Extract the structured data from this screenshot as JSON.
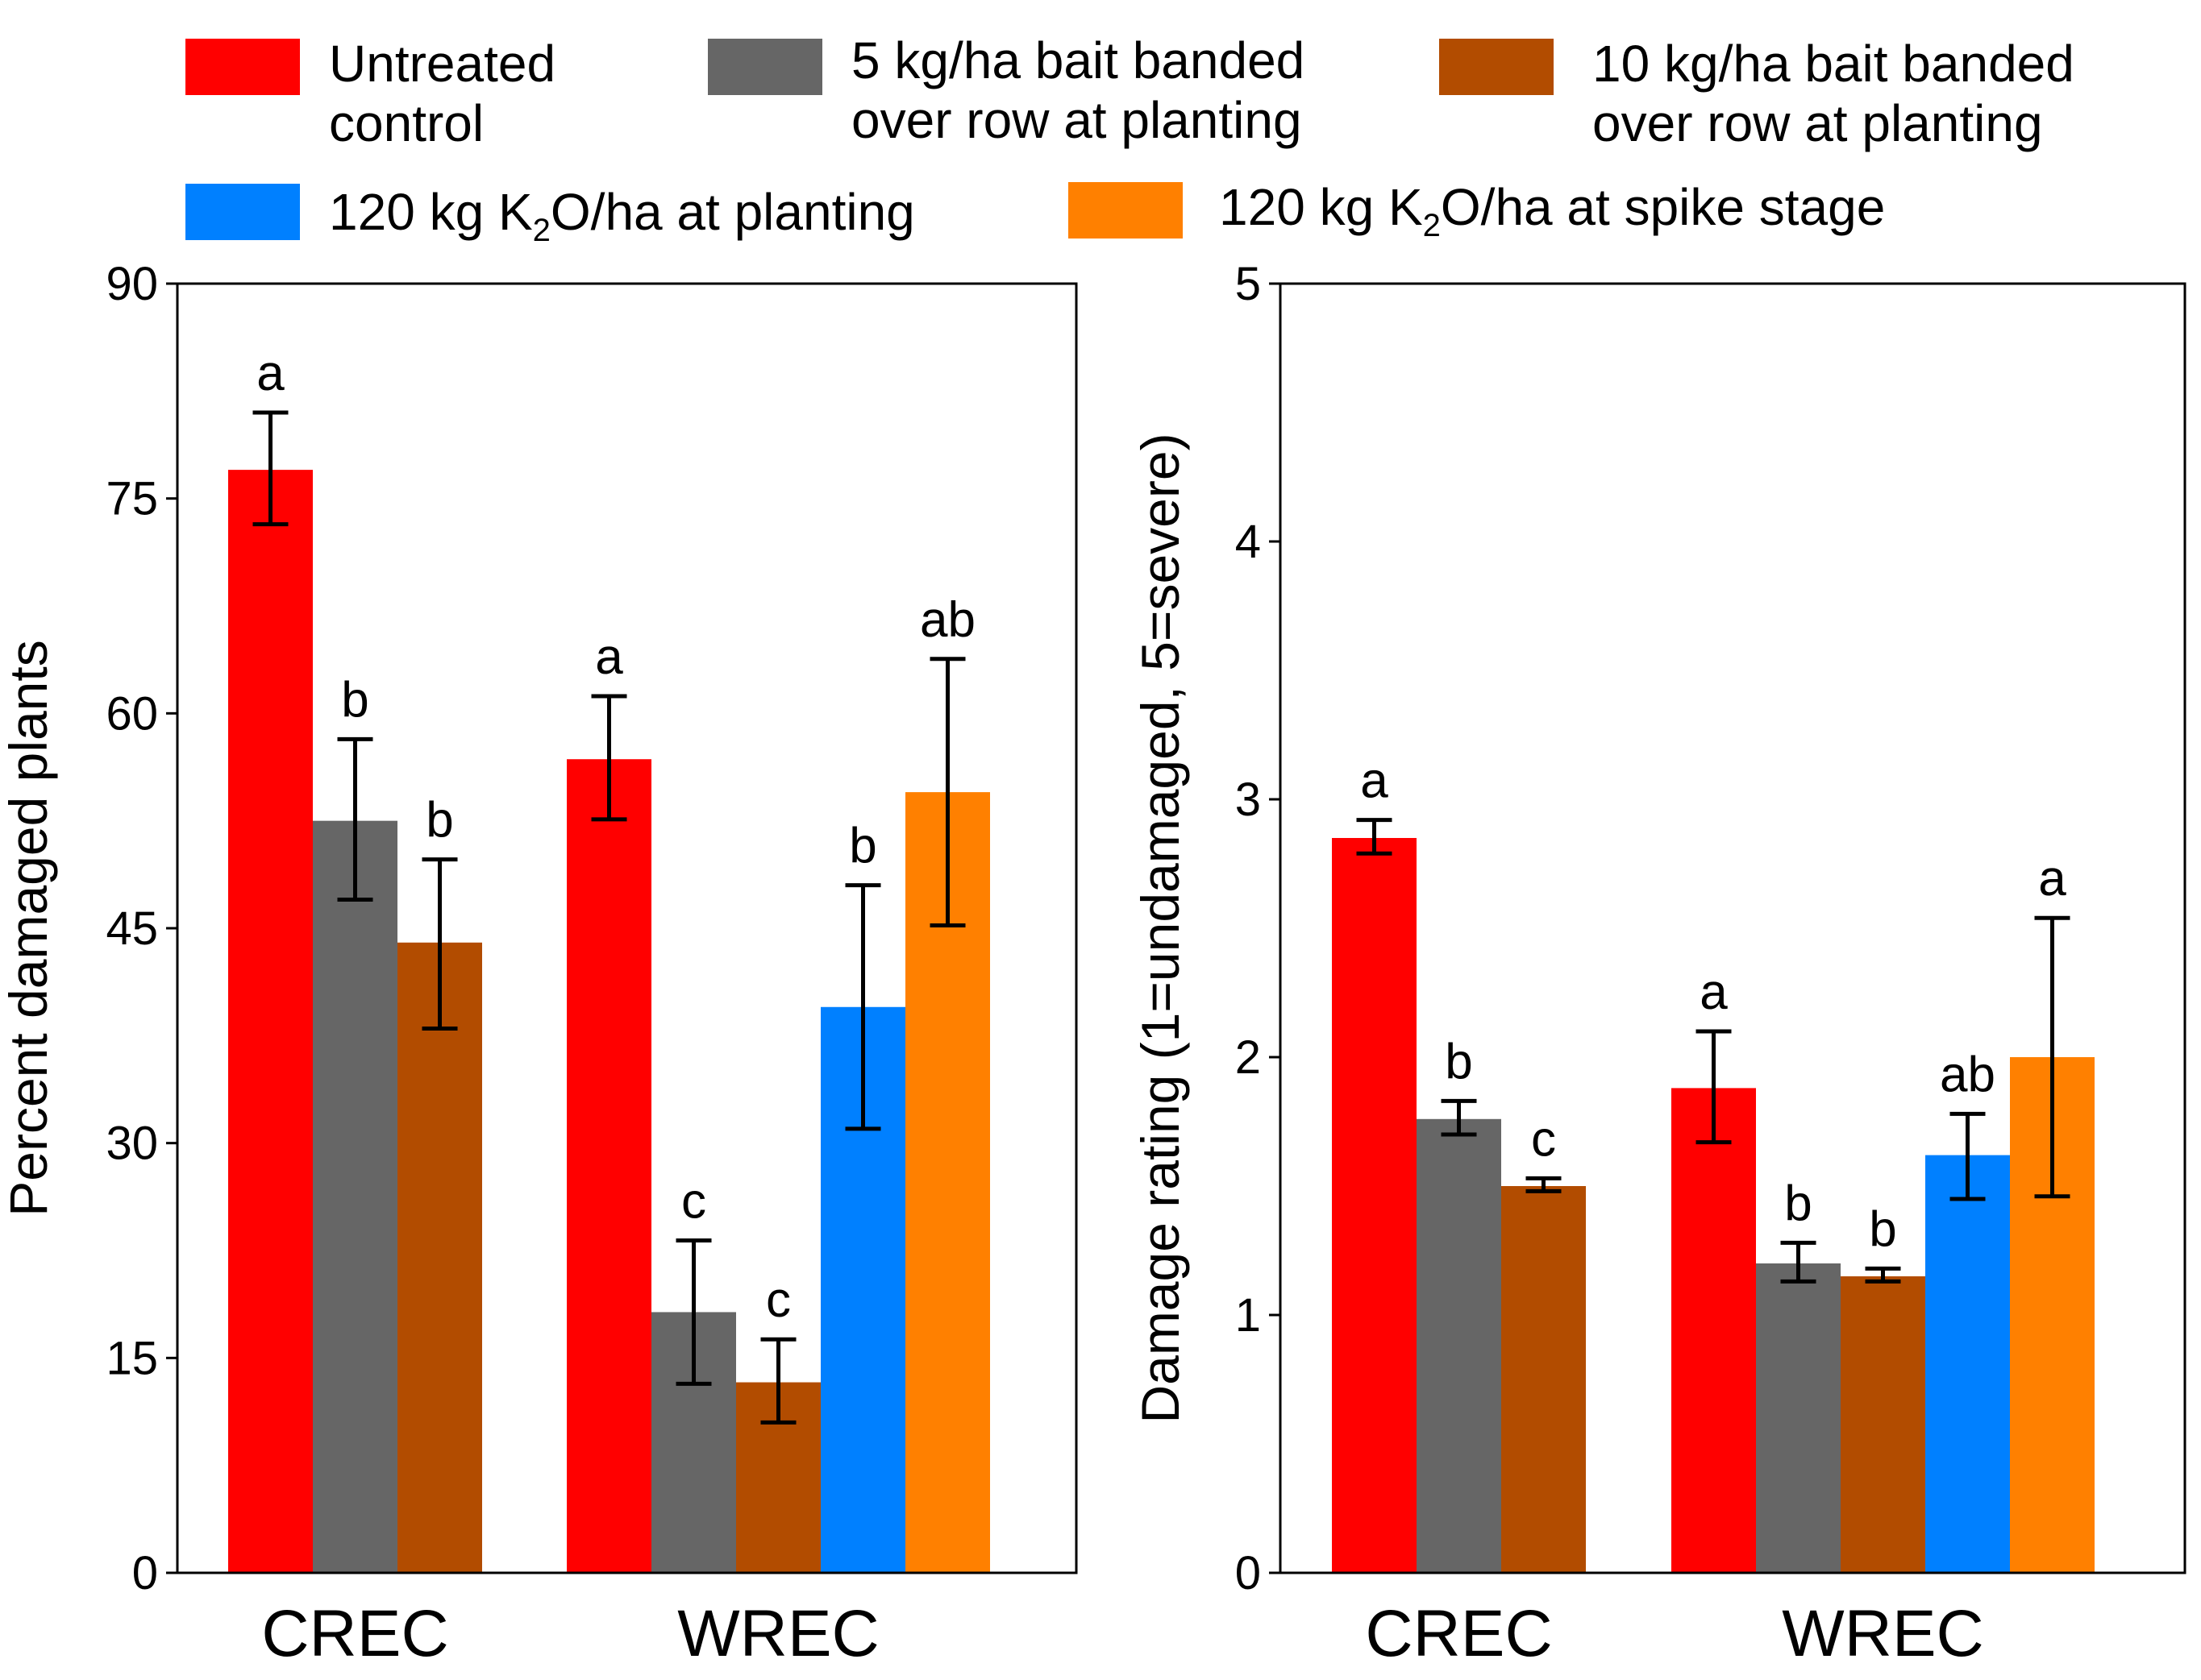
{
  "legend": [
    {
      "id": "untreated",
      "lines": [
        "Untreated",
        "control"
      ],
      "color": "#ff0000"
    },
    {
      "id": "bait5",
      "lines": [
        "5 kg/ha bait banded",
        "over row at planting"
      ],
      "color": "#666666"
    },
    {
      "id": "bait10",
      "lines": [
        "10 kg/ha bait banded",
        "over row at planting"
      ],
      "color": "#b24c00"
    },
    {
      "id": "k2o_planting",
      "pre": "120 kg K",
      "sub": "2",
      "post": "O/ha at planting",
      "color": "#0080ff"
    },
    {
      "id": "k2o_spike",
      "pre": "120 kg K",
      "sub": "2",
      "post": "O/ha at spike stage",
      "color": "#ff8000"
    }
  ],
  "chart_data": [
    {
      "type": "bar",
      "ylabel": "Percent damaged plants",
      "ylim": [
        0,
        90
      ],
      "yticks": [
        0,
        15,
        30,
        45,
        60,
        75,
        90
      ],
      "categories": [
        "CREC",
        "WREC"
      ],
      "series": [
        {
          "name": "Untreated control",
          "values": [
            77,
            56.8
          ],
          "err_low": [
            73.2,
            52.6
          ],
          "err_high": [
            81,
            61.2
          ],
          "labels": [
            "a",
            "a"
          ]
        },
        {
          "name": "5 kg/ha bait banded over row at planting",
          "values": [
            52.5,
            18.2
          ],
          "err_low": [
            47,
            13.2
          ],
          "err_high": [
            58.2,
            23.2
          ],
          "labels": [
            "b",
            "c"
          ]
        },
        {
          "name": "10 kg/ha bait banded over row at planting",
          "values": [
            44,
            13.3
          ],
          "err_low": [
            38,
            10.5
          ],
          "err_high": [
            49.8,
            16.3
          ],
          "labels": [
            "b",
            "c"
          ]
        },
        {
          "name": "120 kg K2O/ha at planting",
          "values": [
            null,
            39.5
          ],
          "err_low": [
            null,
            31
          ],
          "err_high": [
            null,
            48
          ],
          "labels": [
            null,
            "b"
          ]
        },
        {
          "name": "120 kg K2O/ha at spike stage",
          "values": [
            null,
            54.5
          ],
          "err_low": [
            null,
            45.2
          ],
          "err_high": [
            null,
            63.8
          ],
          "labels": [
            null,
            "ab"
          ]
        }
      ]
    },
    {
      "type": "bar",
      "ylabel": "Damage rating  (1=undamaged,  5=severe)",
      "ylim": [
        0,
        5
      ],
      "yticks": [
        0,
        1,
        2,
        3,
        4,
        5
      ],
      "categories": [
        "CREC",
        "WREC"
      ],
      "series": [
        {
          "name": "Untreated control",
          "values": [
            2.85,
            1.88
          ],
          "err_low": [
            2.79,
            1.67
          ],
          "err_high": [
            2.92,
            2.1
          ],
          "labels": [
            "a",
            "a"
          ]
        },
        {
          "name": "5 kg/ha bait banded over row at planting",
          "values": [
            1.76,
            1.2
          ],
          "err_low": [
            1.7,
            1.13
          ],
          "err_high": [
            1.83,
            1.28
          ],
          "labels": [
            "b",
            "b"
          ]
        },
        {
          "name": "10 kg/ha bait banded over row at planting",
          "values": [
            1.5,
            1.15
          ],
          "err_low": [
            1.48,
            1.13
          ],
          "err_high": [
            1.53,
            1.18
          ],
          "labels": [
            "c",
            "b"
          ]
        },
        {
          "name": "120 kg K2O/ha at planting",
          "values": [
            null,
            1.62
          ],
          "err_low": [
            null,
            1.45
          ],
          "err_high": [
            null,
            1.78
          ],
          "labels": [
            null,
            "ab"
          ]
        },
        {
          "name": "120 kg K2O/ha at spike stage",
          "values": [
            null,
            2.0
          ],
          "err_low": [
            null,
            1.46
          ],
          "err_high": [
            null,
            2.54
          ],
          "labels": [
            null,
            "a"
          ]
        }
      ]
    }
  ]
}
